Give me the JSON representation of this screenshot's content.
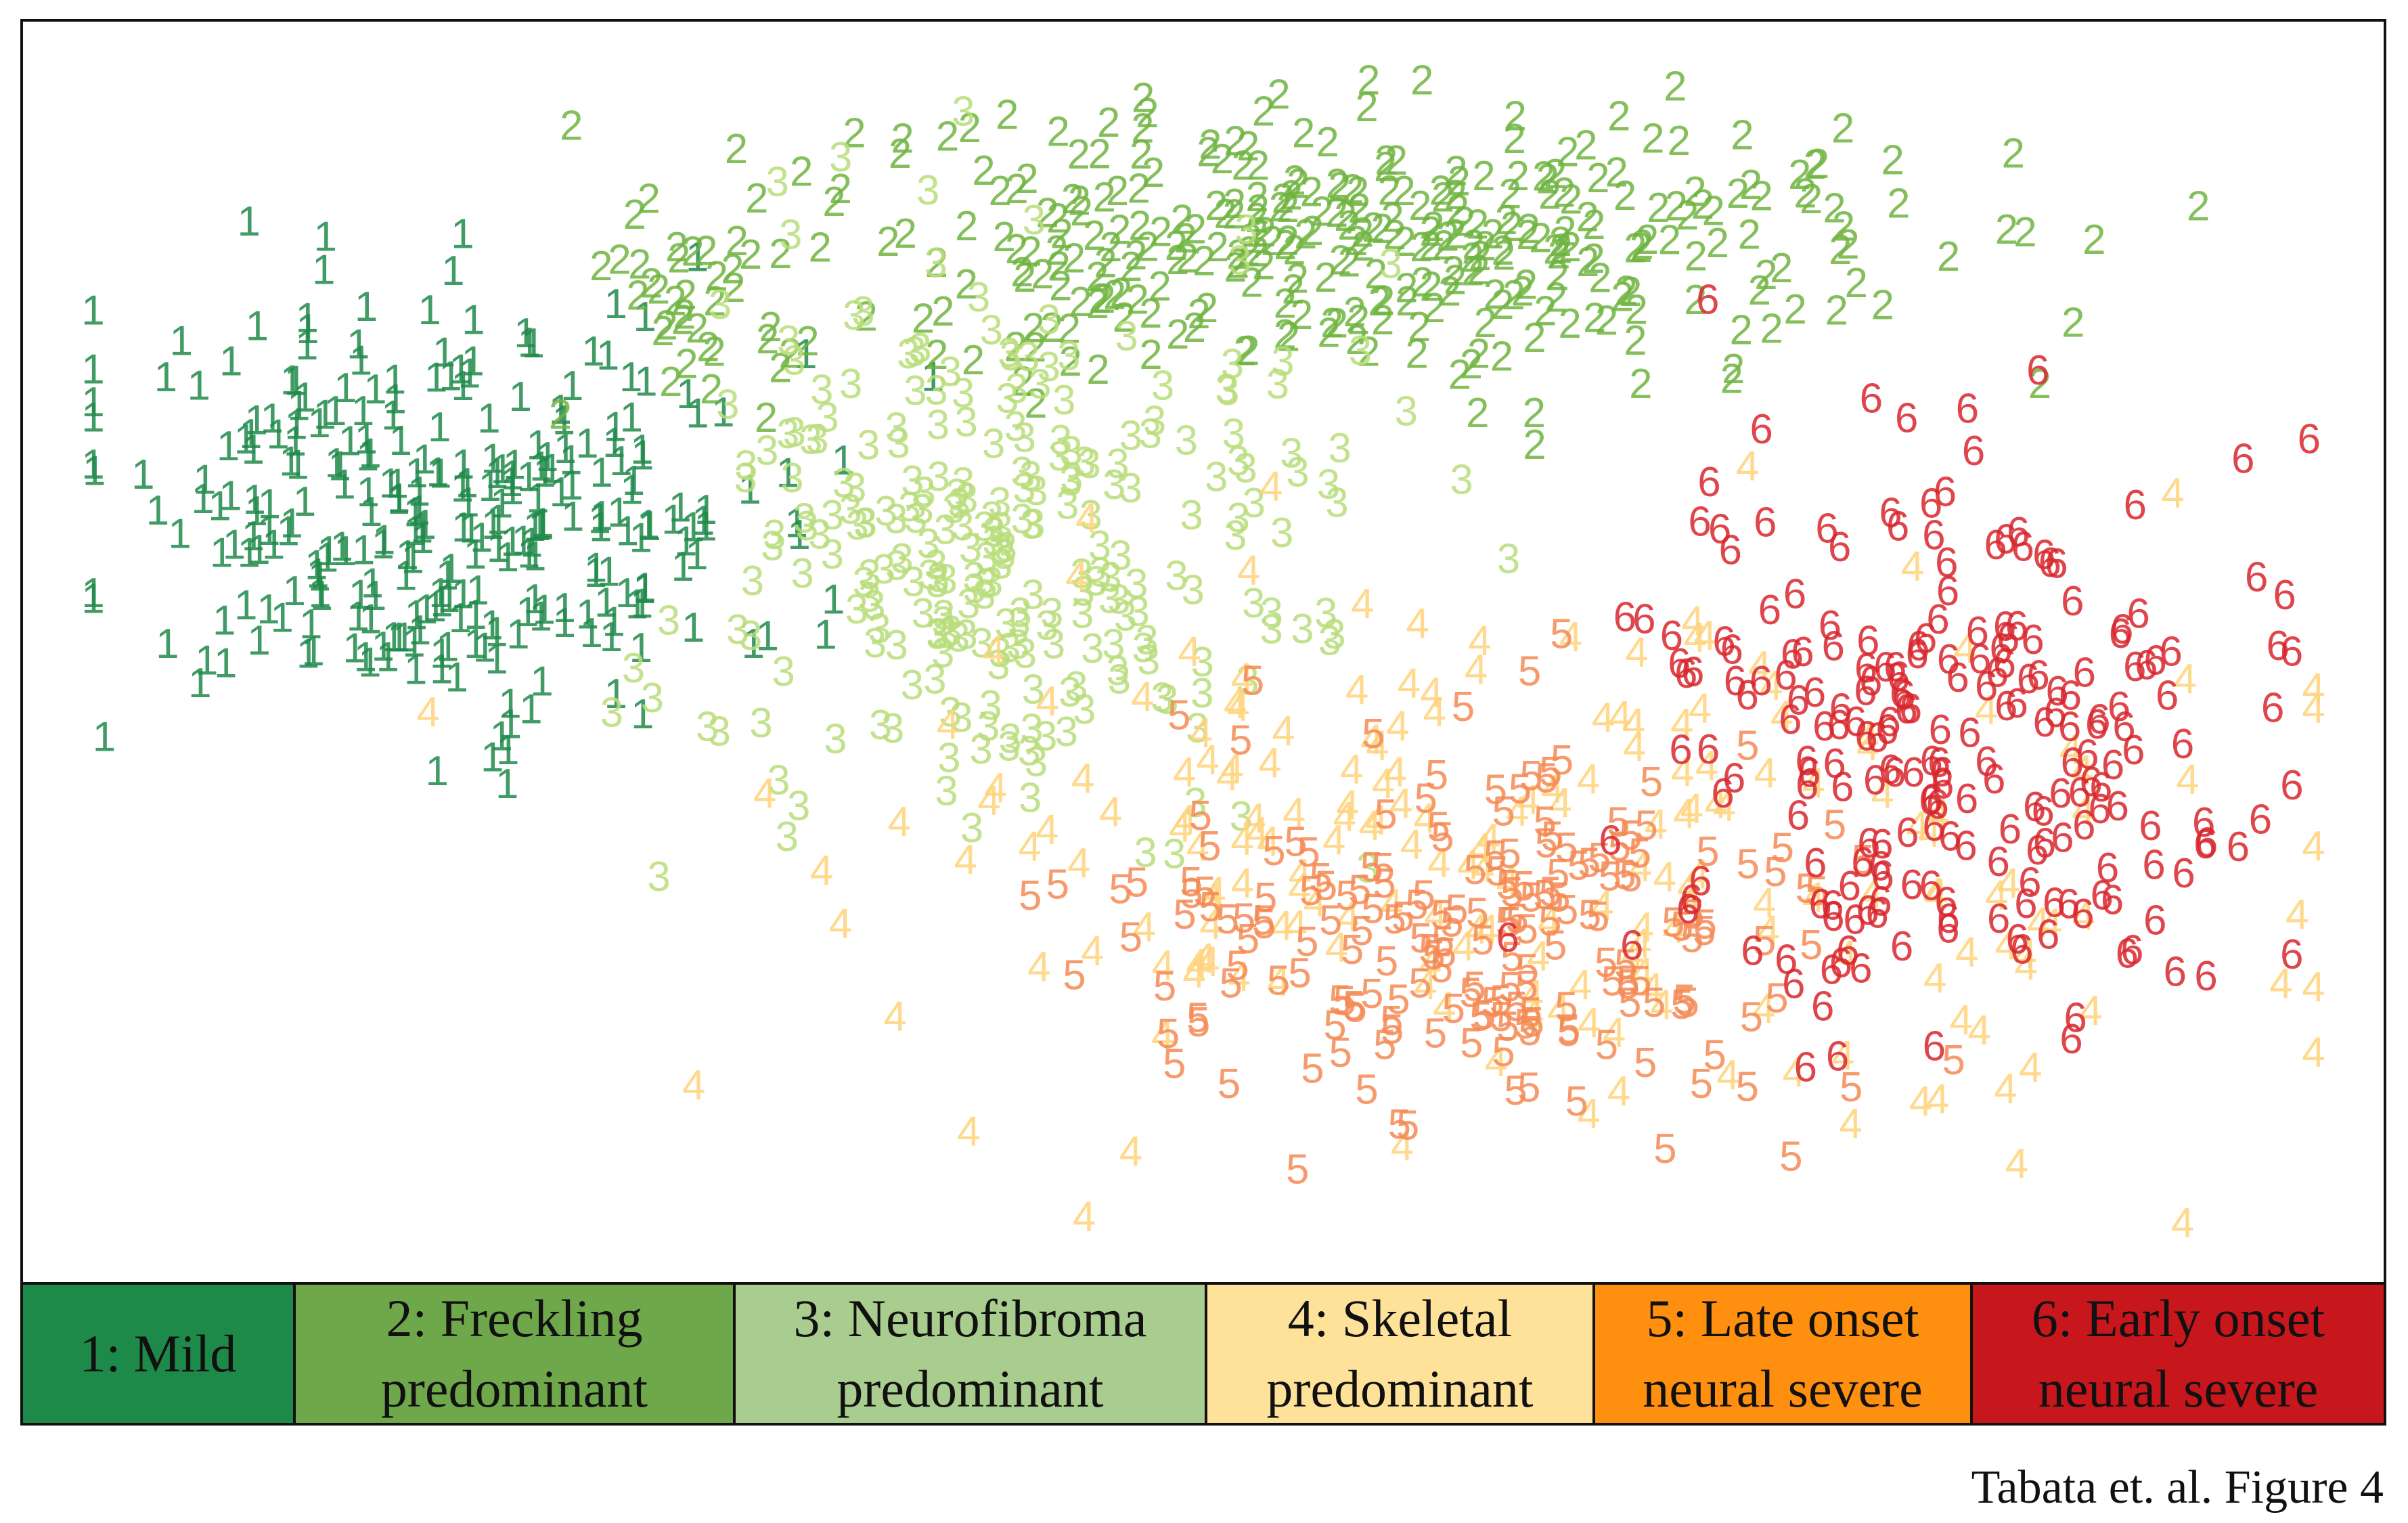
{
  "chart_data": {
    "type": "scatter",
    "title": "",
    "xlabel": "",
    "ylabel": "",
    "xlim": [
      0,
      100
    ],
    "ylim": [
      0,
      100
    ],
    "grid": false,
    "marker": "digit of the cluster id",
    "legend_placement": "bottom",
    "series": [
      {
        "name": "1: Mild",
        "label": "1",
        "color": "#1e8a4a",
        "regions": [
          {
            "cx": 16,
            "cy": 62,
            "sx": 7.5,
            "sy": 9,
            "n": 300
          }
        ]
      },
      {
        "name": "2: Freckling predominant",
        "label": "2",
        "color": "#6fb43f",
        "regions": [
          {
            "cx": 56,
            "cy": 85,
            "sx": 13,
            "sy": 6,
            "n": 340
          },
          {
            "cx": 27,
            "cy": 80,
            "sx": 3,
            "sy": 4,
            "n": 30
          }
        ]
      },
      {
        "name": "3: Neurofibroma predominant",
        "label": "3",
        "color": "#b8dd7a",
        "regions": [
          {
            "cx": 41,
            "cy": 59,
            "sx": 7,
            "sy": 12,
            "n": 270
          }
        ]
      },
      {
        "name": "4: Skeletal predominant",
        "label": "4",
        "color": "#ffd27a",
        "regions": [
          {
            "cx": 66,
            "cy": 32,
            "sx": 16,
            "sy": 12,
            "n": 210
          }
        ]
      },
      {
        "name": "5: Late onset neural severe",
        "label": "5",
        "color": "#f58a55",
        "regions": [
          {
            "cx": 62,
            "cy": 26,
            "sx": 8,
            "sy": 9,
            "n": 200
          }
        ]
      },
      {
        "name": "6: Early onset neural severe",
        "label": "6",
        "color": "#d8262d",
        "regions": [
          {
            "cx": 84,
            "cy": 41,
            "sx": 7.5,
            "sy": 12,
            "n": 230
          }
        ]
      }
    ]
  },
  "legend": {
    "items": [
      {
        "label": "1: Mild",
        "color": "#1e8a4a"
      },
      {
        "label": "2: Freckling\npredominant",
        "color": "#6fa84a"
      },
      {
        "label": "3: Neurofibroma\npredominant",
        "color": "#a9cd8e"
      },
      {
        "label": "4: Skeletal\npredominant",
        "color": "#ffe29a"
      },
      {
        "label": "5:  Late onset\nneural severe",
        "color": "#ff8f0f"
      },
      {
        "label": "6: Early onset\nneural severe",
        "color": "#c8161d"
      }
    ]
  },
  "caption": "Tabata et. al. Figure 4"
}
